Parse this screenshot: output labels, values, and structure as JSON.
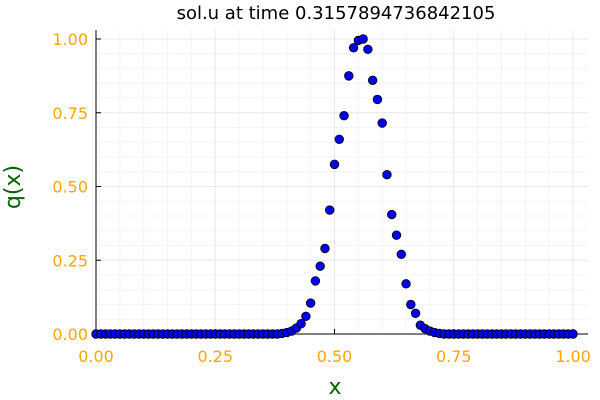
{
  "chart_data": {
    "type": "scatter",
    "title": "sol.u at time 0.3157894736842105",
    "xlabel": "x",
    "ylabel": "q(x)",
    "xlim": [
      0.0,
      1.0
    ],
    "ylim": [
      0.0,
      1.0
    ],
    "xticks": [
      "0.00",
      "0.25",
      "0.50",
      "0.75",
      "1.00"
    ],
    "yticks": [
      "0.00",
      "0.25",
      "0.50",
      "0.75",
      "1.00"
    ],
    "grid": true,
    "legend": "none",
    "colors": {
      "marker_fill": "#0000ee",
      "marker_edge": "#000000",
      "tick_labels": "#ffa500",
      "axis_labels": "#006400",
      "grid": "#e8e8e8"
    },
    "series": [
      {
        "x": [
          0.0,
          0.01,
          0.02,
          0.03,
          0.04,
          0.05,
          0.06,
          0.07,
          0.08,
          0.09,
          0.1,
          0.11,
          0.12,
          0.13,
          0.14,
          0.15,
          0.16,
          0.17,
          0.18,
          0.19,
          0.2,
          0.21,
          0.22,
          0.23,
          0.24,
          0.25,
          0.26,
          0.27,
          0.28,
          0.29,
          0.3,
          0.31,
          0.32,
          0.33,
          0.34,
          0.35,
          0.36,
          0.37,
          0.38,
          0.39,
          0.4,
          0.41,
          0.42,
          0.43,
          0.44,
          0.45,
          0.46,
          0.47,
          0.48,
          0.49,
          0.5,
          0.51,
          0.52,
          0.53,
          0.54,
          0.55,
          0.56,
          0.57,
          0.58,
          0.59,
          0.6,
          0.61,
          0.62,
          0.63,
          0.64,
          0.65,
          0.66,
          0.67,
          0.68,
          0.69,
          0.7,
          0.71,
          0.72,
          0.73,
          0.74,
          0.75,
          0.76,
          0.77,
          0.78,
          0.79,
          0.8,
          0.81,
          0.82,
          0.83,
          0.84,
          0.85,
          0.86,
          0.87,
          0.88,
          0.89,
          0.9,
          0.91,
          0.92,
          0.93,
          0.94,
          0.95,
          0.96,
          0.97,
          0.98,
          0.99,
          1.0
        ],
        "values": [
          0.0,
          0.0,
          0.0,
          0.0,
          0.0,
          0.0,
          0.0,
          0.0,
          0.0,
          0.0,
          0.0,
          0.0,
          0.0,
          0.0,
          0.0,
          0.0,
          0.0,
          0.0,
          0.0,
          0.0,
          0.0,
          0.0,
          0.0,
          0.0,
          0.0,
          0.0,
          0.0,
          0.0,
          0.0,
          0.0,
          0.0,
          0.0,
          0.0,
          0.0,
          0.0,
          0.0,
          0.0,
          0.0,
          0.0,
          0.002,
          0.005,
          0.01,
          0.02,
          0.035,
          0.06,
          0.105,
          0.18,
          0.23,
          0.29,
          0.42,
          0.575,
          0.66,
          0.74,
          0.875,
          0.97,
          0.995,
          1.0,
          0.965,
          0.86,
          0.795,
          0.715,
          0.54,
          0.405,
          0.335,
          0.27,
          0.17,
          0.1,
          0.07,
          0.03,
          0.018,
          0.01,
          0.005,
          0.002,
          0.0,
          0.0,
          0.0,
          0.0,
          0.0,
          0.0,
          0.0,
          0.0,
          0.0,
          0.0,
          0.0,
          0.0,
          0.0,
          0.0,
          0.0,
          0.0,
          0.0,
          0.0,
          0.0,
          0.0,
          0.0,
          0.0,
          0.0,
          0.0,
          0.0,
          0.0,
          0.0,
          0.0
        ]
      }
    ]
  }
}
